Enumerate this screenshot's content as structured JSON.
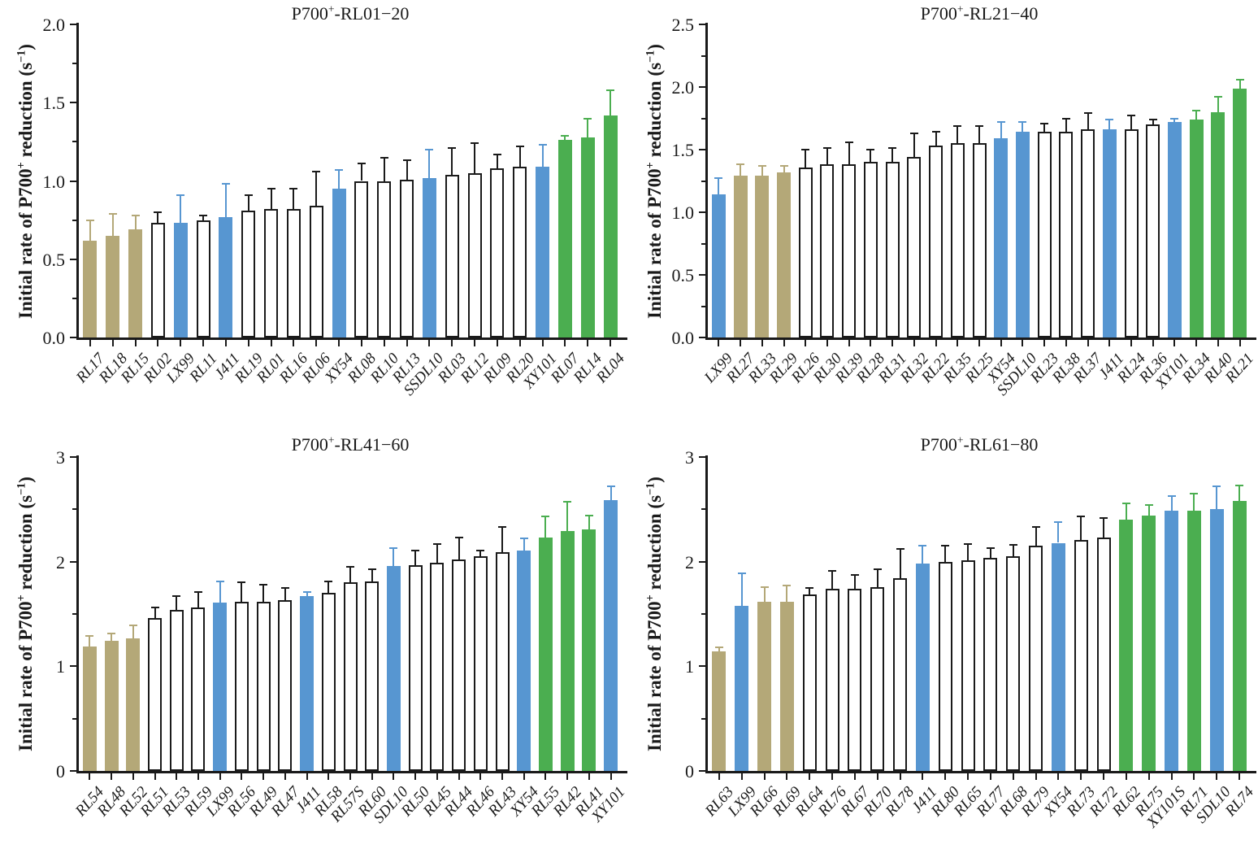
{
  "colors": {
    "tan": "#b4a878",
    "blue": "#5796d1",
    "green": "#4bae50",
    "white": "#ffffff",
    "axis": "#1a1a1a"
  },
  "ylabel_segments": [
    {
      "t": "Initial rate of P700"
    },
    {
      "t": "+",
      "sup": true
    },
    {
      "t": " reduction (s"
    },
    {
      "t": "−1",
      "sup": true
    },
    {
      "t": ")"
    }
  ],
  "chart_data": [
    {
      "type": "bar",
      "name": "rl01-20",
      "title_segments": [
        {
          "t": "P700"
        },
        {
          "t": "+",
          "sup": true
        },
        {
          "t": "-RL01−20"
        }
      ],
      "ylabel": "Initial rate of P700+ reduction (s-1)",
      "ylim": [
        0,
        2.0
      ],
      "grid": false,
      "yticks": [
        {
          "v": 0.0,
          "label": "0.0"
        },
        {
          "v": 0.5,
          "label": "0.5"
        },
        {
          "v": 1.0,
          "label": "1.0"
        },
        {
          "v": 1.5,
          "label": "1.5"
        },
        {
          "v": 2.0,
          "label": "2.0"
        }
      ],
      "bars": [
        {
          "label": "RL17",
          "value": 0.62,
          "err": 0.13,
          "color": "tan"
        },
        {
          "label": "RL18",
          "value": 0.65,
          "err": 0.14,
          "color": "tan"
        },
        {
          "label": "RL15",
          "value": 0.69,
          "err": 0.09,
          "color": "tan"
        },
        {
          "label": "RL02",
          "value": 0.73,
          "err": 0.07,
          "color": "white"
        },
        {
          "label": "LX99",
          "value": 0.73,
          "err": 0.18,
          "color": "blue"
        },
        {
          "label": "RL11",
          "value": 0.75,
          "err": 0.03,
          "color": "white"
        },
        {
          "label": "J411",
          "value": 0.77,
          "err": 0.21,
          "color": "blue"
        },
        {
          "label": "RL19",
          "value": 0.81,
          "err": 0.1,
          "color": "white"
        },
        {
          "label": "RL01",
          "value": 0.82,
          "err": 0.13,
          "color": "white"
        },
        {
          "label": "RL16",
          "value": 0.82,
          "err": 0.13,
          "color": "white"
        },
        {
          "label": "RL06",
          "value": 0.84,
          "err": 0.22,
          "color": "white"
        },
        {
          "label": "XY54",
          "value": 0.95,
          "err": 0.12,
          "color": "blue"
        },
        {
          "label": "RL08",
          "value": 1.0,
          "err": 0.11,
          "color": "white"
        },
        {
          "label": "RL10",
          "value": 1.0,
          "err": 0.15,
          "color": "white"
        },
        {
          "label": "RL13",
          "value": 1.01,
          "err": 0.12,
          "color": "white"
        },
        {
          "label": "SSDL10",
          "value": 1.02,
          "err": 0.18,
          "color": "blue"
        },
        {
          "label": "RL03",
          "value": 1.04,
          "err": 0.17,
          "color": "white"
        },
        {
          "label": "RL12",
          "value": 1.05,
          "err": 0.19,
          "color": "white"
        },
        {
          "label": "RL09",
          "value": 1.08,
          "err": 0.09,
          "color": "white"
        },
        {
          "label": "RL20",
          "value": 1.09,
          "err": 0.13,
          "color": "white"
        },
        {
          "label": "XY101",
          "value": 1.09,
          "err": 0.14,
          "color": "blue"
        },
        {
          "label": "RL07",
          "value": 1.26,
          "err": 0.03,
          "color": "green"
        },
        {
          "label": "RL14",
          "value": 1.28,
          "err": 0.12,
          "color": "green"
        },
        {
          "label": "RL04",
          "value": 1.42,
          "err": 0.16,
          "color": "green"
        }
      ]
    },
    {
      "type": "bar",
      "name": "rl21-40",
      "title_segments": [
        {
          "t": "P700"
        },
        {
          "t": "+",
          "sup": true
        },
        {
          "t": "-RL21−40"
        }
      ],
      "ylabel": "Initial rate of P700+ reduction (s-1)",
      "ylim": [
        0,
        2.5
      ],
      "grid": false,
      "yticks": [
        {
          "v": 0.0,
          "label": "0.0"
        },
        {
          "v": 0.5,
          "label": "0.5"
        },
        {
          "v": 1.0,
          "label": "1.0"
        },
        {
          "v": 1.5,
          "label": "1.5"
        },
        {
          "v": 2.0,
          "label": "2.0"
        },
        {
          "v": 2.5,
          "label": "2.5"
        }
      ],
      "bars": [
        {
          "label": "LX99",
          "value": 1.14,
          "err": 0.13,
          "color": "blue"
        },
        {
          "label": "RL27",
          "value": 1.29,
          "err": 0.09,
          "color": "tan"
        },
        {
          "label": "RL33",
          "value": 1.29,
          "err": 0.08,
          "color": "tan"
        },
        {
          "label": "RL29",
          "value": 1.32,
          "err": 0.05,
          "color": "tan"
        },
        {
          "label": "RL26",
          "value": 1.36,
          "err": 0.14,
          "color": "white"
        },
        {
          "label": "RL30",
          "value": 1.38,
          "err": 0.13,
          "color": "white"
        },
        {
          "label": "RL39",
          "value": 1.38,
          "err": 0.18,
          "color": "white"
        },
        {
          "label": "RL28",
          "value": 1.4,
          "err": 0.1,
          "color": "white"
        },
        {
          "label": "RL31",
          "value": 1.4,
          "err": 0.11,
          "color": "white"
        },
        {
          "label": "RL32",
          "value": 1.44,
          "err": 0.19,
          "color": "white"
        },
        {
          "label": "RL22",
          "value": 1.53,
          "err": 0.11,
          "color": "white"
        },
        {
          "label": "RL35",
          "value": 1.55,
          "err": 0.14,
          "color": "white"
        },
        {
          "label": "RL25",
          "value": 1.55,
          "err": 0.14,
          "color": "white"
        },
        {
          "label": "XY54",
          "value": 1.59,
          "err": 0.13,
          "color": "blue"
        },
        {
          "label": "SSDL10",
          "value": 1.64,
          "err": 0.08,
          "color": "blue"
        },
        {
          "label": "RL23",
          "value": 1.64,
          "err": 0.07,
          "color": "white"
        },
        {
          "label": "RL38",
          "value": 1.64,
          "err": 0.11,
          "color": "white"
        },
        {
          "label": "RL37",
          "value": 1.66,
          "err": 0.13,
          "color": "white"
        },
        {
          "label": "J411",
          "value": 1.66,
          "err": 0.08,
          "color": "blue"
        },
        {
          "label": "RL24",
          "value": 1.66,
          "err": 0.11,
          "color": "white"
        },
        {
          "label": "RL36",
          "value": 1.7,
          "err": 0.04,
          "color": "white"
        },
        {
          "label": "XY101",
          "value": 1.72,
          "err": 0.03,
          "color": "blue"
        },
        {
          "label": "RL34",
          "value": 1.74,
          "err": 0.07,
          "color": "green"
        },
        {
          "label": "RL40",
          "value": 1.8,
          "err": 0.12,
          "color": "green"
        },
        {
          "label": "RL21",
          "value": 1.99,
          "err": 0.07,
          "color": "green"
        }
      ]
    },
    {
      "type": "bar",
      "name": "rl41-60",
      "title_segments": [
        {
          "t": "P700"
        },
        {
          "t": "+",
          "sup": true
        },
        {
          "t": "-RL41−60"
        }
      ],
      "ylabel": "Initial rate of P700+ reduction (s-1)",
      "ylim": [
        0,
        3
      ],
      "grid": false,
      "yticks": [
        {
          "v": 0,
          "label": "0"
        },
        {
          "v": 1,
          "label": "1"
        },
        {
          "v": 2,
          "label": "2"
        },
        {
          "v": 3,
          "label": "3"
        }
      ],
      "bars": [
        {
          "label": "RL54",
          "value": 1.19,
          "err": 0.1,
          "color": "tan"
        },
        {
          "label": "RL48",
          "value": 1.24,
          "err": 0.07,
          "color": "tan"
        },
        {
          "label": "RL52",
          "value": 1.27,
          "err": 0.12,
          "color": "tan"
        },
        {
          "label": "RL51",
          "value": 1.46,
          "err": 0.1,
          "color": "white"
        },
        {
          "label": "RL53",
          "value": 1.54,
          "err": 0.13,
          "color": "white"
        },
        {
          "label": "RL59",
          "value": 1.56,
          "err": 0.15,
          "color": "white"
        },
        {
          "label": "LX99",
          "value": 1.61,
          "err": 0.2,
          "color": "blue"
        },
        {
          "label": "RL56",
          "value": 1.62,
          "err": 0.18,
          "color": "white"
        },
        {
          "label": "RL49",
          "value": 1.62,
          "err": 0.16,
          "color": "white"
        },
        {
          "label": "RL47",
          "value": 1.63,
          "err": 0.12,
          "color": "white"
        },
        {
          "label": "J411",
          "value": 1.67,
          "err": 0.04,
          "color": "blue"
        },
        {
          "label": "RL58",
          "value": 1.7,
          "err": 0.11,
          "color": "white"
        },
        {
          "label": "RL57S",
          "value": 1.8,
          "err": 0.15,
          "color": "white"
        },
        {
          "label": "RL60",
          "value": 1.81,
          "err": 0.12,
          "color": "white"
        },
        {
          "label": "SDL10",
          "value": 1.96,
          "err": 0.17,
          "color": "blue"
        },
        {
          "label": "RL50",
          "value": 1.97,
          "err": 0.14,
          "color": "white"
        },
        {
          "label": "RL45",
          "value": 1.99,
          "err": 0.18,
          "color": "white"
        },
        {
          "label": "RL44",
          "value": 2.02,
          "err": 0.21,
          "color": "white"
        },
        {
          "label": "RL46",
          "value": 2.05,
          "err": 0.06,
          "color": "white"
        },
        {
          "label": "RL43",
          "value": 2.09,
          "err": 0.24,
          "color": "white"
        },
        {
          "label": "XY54",
          "value": 2.11,
          "err": 0.11,
          "color": "blue"
        },
        {
          "label": "RL55",
          "value": 2.23,
          "err": 0.2,
          "color": "green"
        },
        {
          "label": "RL42",
          "value": 2.29,
          "err": 0.28,
          "color": "green"
        },
        {
          "label": "RL41",
          "value": 2.31,
          "err": 0.13,
          "color": "green"
        },
        {
          "label": "XY101",
          "value": 2.59,
          "err": 0.13,
          "color": "blue"
        }
      ]
    },
    {
      "type": "bar",
      "name": "rl61-80",
      "title_segments": [
        {
          "t": "P700"
        },
        {
          "t": "+",
          "sup": true
        },
        {
          "t": "-RL61−80"
        }
      ],
      "ylabel": "Initial rate of P700+ reduction (s-1)",
      "ylim": [
        0,
        3
      ],
      "grid": false,
      "yticks": [
        {
          "v": 0,
          "label": "0"
        },
        {
          "v": 1,
          "label": "1"
        },
        {
          "v": 2,
          "label": "2"
        },
        {
          "v": 3,
          "label": "3"
        }
      ],
      "bars": [
        {
          "label": "RL63",
          "value": 1.14,
          "err": 0.04,
          "color": "tan"
        },
        {
          "label": "LX99",
          "value": 1.58,
          "err": 0.31,
          "color": "blue"
        },
        {
          "label": "RL66",
          "value": 1.62,
          "err": 0.14,
          "color": "tan"
        },
        {
          "label": "RL69",
          "value": 1.62,
          "err": 0.15,
          "color": "tan"
        },
        {
          "label": "RL64",
          "value": 1.69,
          "err": 0.06,
          "color": "white"
        },
        {
          "label": "RL76",
          "value": 1.74,
          "err": 0.17,
          "color": "white"
        },
        {
          "label": "RL67",
          "value": 1.74,
          "err": 0.13,
          "color": "white"
        },
        {
          "label": "RL70",
          "value": 1.76,
          "err": 0.17,
          "color": "white"
        },
        {
          "label": "RL78",
          "value": 1.84,
          "err": 0.28,
          "color": "white"
        },
        {
          "label": "J411",
          "value": 1.98,
          "err": 0.17,
          "color": "blue"
        },
        {
          "label": "RL80",
          "value": 2.0,
          "err": 0.15,
          "color": "white"
        },
        {
          "label": "RL65",
          "value": 2.01,
          "err": 0.16,
          "color": "white"
        },
        {
          "label": "RL77",
          "value": 2.04,
          "err": 0.09,
          "color": "white"
        },
        {
          "label": "RL68",
          "value": 2.05,
          "err": 0.11,
          "color": "white"
        },
        {
          "label": "RL79",
          "value": 2.15,
          "err": 0.18,
          "color": "white"
        },
        {
          "label": "XY54",
          "value": 2.18,
          "err": 0.2,
          "color": "blue"
        },
        {
          "label": "RL73",
          "value": 2.21,
          "err": 0.22,
          "color": "white"
        },
        {
          "label": "RL72",
          "value": 2.23,
          "err": 0.19,
          "color": "white"
        },
        {
          "label": "RL62",
          "value": 2.4,
          "err": 0.16,
          "color": "green"
        },
        {
          "label": "RL75",
          "value": 2.44,
          "err": 0.1,
          "color": "green"
        },
        {
          "label": "XY101S",
          "value": 2.49,
          "err": 0.14,
          "color": "blue"
        },
        {
          "label": "RL71",
          "value": 2.49,
          "err": 0.16,
          "color": "green"
        },
        {
          "label": "SDL10",
          "value": 2.5,
          "err": 0.22,
          "color": "blue"
        },
        {
          "label": "RL74",
          "value": 2.58,
          "err": 0.15,
          "color": "green"
        }
      ]
    }
  ]
}
